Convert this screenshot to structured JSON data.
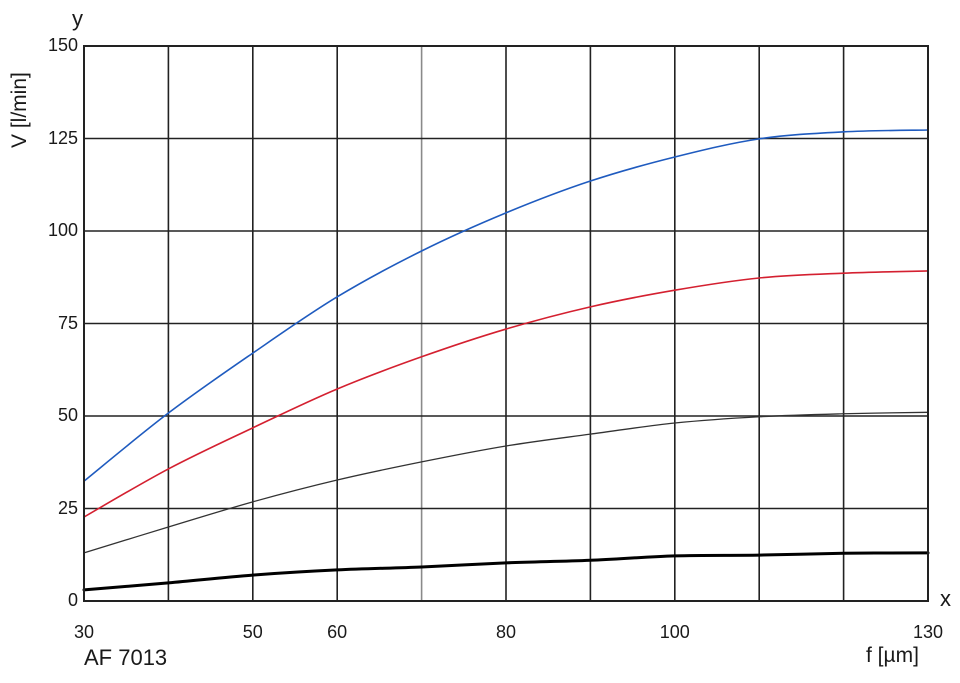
{
  "chart_data": {
    "type": "line",
    "title": "",
    "caption": "AF 7013",
    "xlabel": "f [µm]",
    "ylabel": "V [l/min]",
    "x_axis_letter": "x",
    "y_axis_letter": "y",
    "xlim": [
      30,
      130
    ],
    "ylim": [
      0,
      150
    ],
    "grid": true,
    "x_gridlines": [
      30,
      40,
      50,
      60,
      70,
      80,
      90,
      100,
      110,
      120,
      130
    ],
    "y_gridlines": [
      0,
      25,
      50,
      75,
      100,
      125,
      150
    ],
    "x_tick_labels": [
      "30",
      "50",
      "60",
      "80",
      "100",
      "130"
    ],
    "y_tick_labels": [
      "0",
      "25",
      "50",
      "75",
      "100",
      "125",
      "150"
    ],
    "x": [
      30,
      40,
      50,
      60,
      70,
      80,
      90,
      100,
      110,
      120,
      130
    ],
    "series": [
      {
        "name": "blue",
        "color": "#1f5bbf",
        "width": 1.6,
        "values": [
          32.4,
          50.8,
          67,
          82.2,
          94.6,
          104.9,
          113.5,
          120,
          124.9,
          126.8,
          127.3
        ]
      },
      {
        "name": "red",
        "color": "#d42030",
        "width": 1.6,
        "values": [
          22.7,
          35.7,
          46.8,
          57.3,
          66,
          73.5,
          79.5,
          84,
          87.3,
          88.6,
          89.2
        ]
      },
      {
        "name": "gray",
        "color": "#333333",
        "width": 1.3,
        "values": [
          13,
          20,
          26.8,
          32.7,
          37.6,
          41.9,
          45.1,
          48.1,
          49.8,
          50.6,
          51
        ]
      },
      {
        "name": "black",
        "color": "#000000",
        "width": 3,
        "values": [
          3,
          4.9,
          7,
          8.4,
          9.2,
          10.3,
          11,
          12.2,
          12.4,
          12.9,
          13
        ]
      }
    ],
    "legend": "none"
  }
}
